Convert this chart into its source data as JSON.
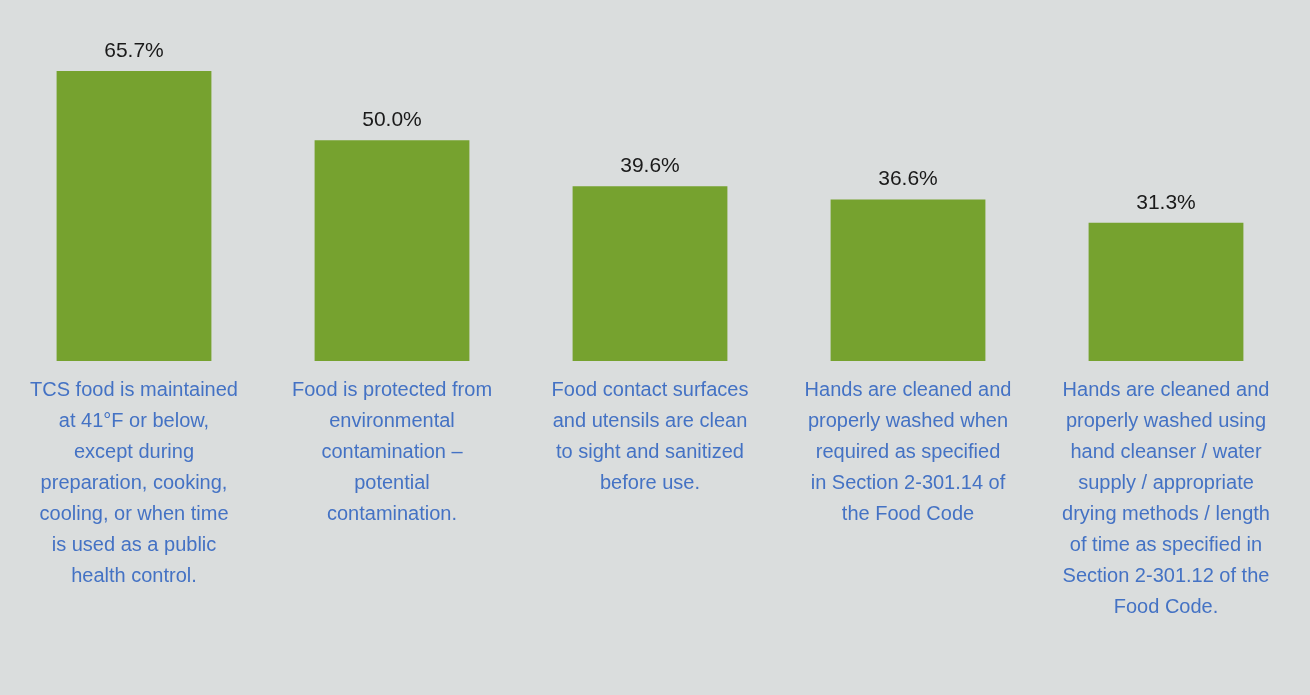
{
  "chart_data": {
    "type": "bar",
    "categories": [
      "TCS food is maintained at 41°F or below, except during preparation, cooking, cooling, or when time is used as a public health control.",
      "Food is protected from environmental contamination – potential contamination.",
      "Food contact surfaces and utensils are clean to sight and sanitized before use.",
      "Hands are cleaned and properly washed when required as specified in Section 2-301.14 of the Food Code",
      "Hands are cleaned and properly washed using hand cleanser / water supply / appropriate drying methods / length of time as specified in Section 2-301.12 of the Food Code."
    ],
    "values": [
      65.7,
      50.0,
      39.6,
      36.6,
      31.3
    ],
    "value_labels": [
      "65.7%",
      "50.0%",
      "39.6%",
      "36.6%",
      "31.3%"
    ],
    "color": "#76a22f"
  }
}
